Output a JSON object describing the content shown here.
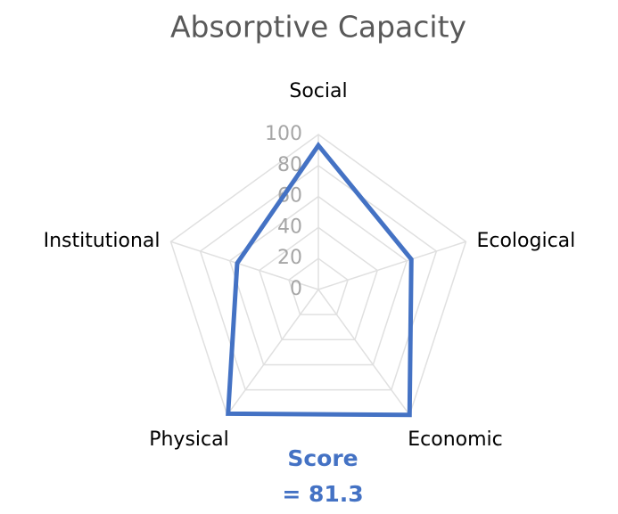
{
  "chart_data": {
    "type": "radar",
    "title": "Absorptive Capacity",
    "categories": [
      "Social",
      "Ecological",
      "Economic",
      "Physical",
      "Institutional"
    ],
    "series": [
      {
        "color": "#4472c4",
        "values": [
          93,
          63,
          100,
          99,
          55
        ]
      }
    ],
    "ylim": [
      0,
      100
    ],
    "yticks": [
      0,
      20,
      40,
      60,
      80,
      100
    ],
    "grid": true,
    "score": {
      "label": "Score",
      "value": 81.3,
      "value_label": "= 81.3"
    }
  }
}
